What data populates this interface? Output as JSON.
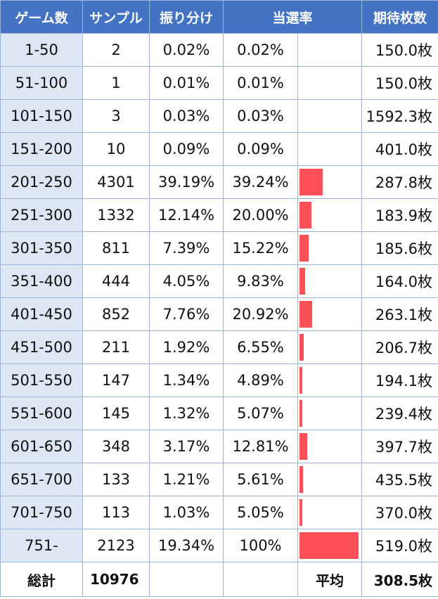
{
  "header": {
    "games": "ゲーム数",
    "samples": "サンプル",
    "distribution": "振り分け",
    "win_rate": "当選率",
    "expected": "期待枚数"
  },
  "chart_data": {
    "type": "table",
    "columns": [
      "ゲーム数",
      "サンプル",
      "振り分け",
      "当選率",
      "",
      "期待枚数"
    ],
    "bar_column": "当選率",
    "bar_color": "#ff5058",
    "rows": [
      {
        "range": "1-50",
        "samples": "2",
        "dist": "0.02%",
        "rate": "0.02%",
        "rate_value": 0.02,
        "ev": "150.0枚"
      },
      {
        "range": "51-100",
        "samples": "1",
        "dist": "0.01%",
        "rate": "0.01%",
        "rate_value": 0.01,
        "ev": "150.0枚"
      },
      {
        "range": "101-150",
        "samples": "3",
        "dist": "0.03%",
        "rate": "0.03%",
        "rate_value": 0.03,
        "ev": "1592.3枚"
      },
      {
        "range": "151-200",
        "samples": "10",
        "dist": "0.09%",
        "rate": "0.09%",
        "rate_value": 0.09,
        "ev": "401.0枚"
      },
      {
        "range": "201-250",
        "samples": "4301",
        "dist": "39.19%",
        "rate": "39.24%",
        "rate_value": 39.24,
        "ev": "287.8枚"
      },
      {
        "range": "251-300",
        "samples": "1332",
        "dist": "12.14%",
        "rate": "20.00%",
        "rate_value": 20.0,
        "ev": "183.9枚"
      },
      {
        "range": "301-350",
        "samples": "811",
        "dist": "7.39%",
        "rate": "15.22%",
        "rate_value": 15.22,
        "ev": "185.6枚"
      },
      {
        "range": "351-400",
        "samples": "444",
        "dist": "4.05%",
        "rate": "9.83%",
        "rate_value": 9.83,
        "ev": "164.0枚"
      },
      {
        "range": "401-450",
        "samples": "852",
        "dist": "7.76%",
        "rate": "20.92%",
        "rate_value": 20.92,
        "ev": "263.1枚"
      },
      {
        "range": "451-500",
        "samples": "211",
        "dist": "1.92%",
        "rate": "6.55%",
        "rate_value": 6.55,
        "ev": "206.7枚"
      },
      {
        "range": "501-550",
        "samples": "147",
        "dist": "1.34%",
        "rate": "4.89%",
        "rate_value": 4.89,
        "ev": "194.1枚"
      },
      {
        "range": "551-600",
        "samples": "145",
        "dist": "1.32%",
        "rate": "5.07%",
        "rate_value": 5.07,
        "ev": "239.4枚"
      },
      {
        "range": "601-650",
        "samples": "348",
        "dist": "3.17%",
        "rate": "12.81%",
        "rate_value": 12.81,
        "ev": "397.7枚"
      },
      {
        "range": "651-700",
        "samples": "133",
        "dist": "1.21%",
        "rate": "5.61%",
        "rate_value": 5.61,
        "ev": "435.5枚"
      },
      {
        "range": "701-750",
        "samples": "113",
        "dist": "1.03%",
        "rate": "5.05%",
        "rate_value": 5.05,
        "ev": "370.0枚"
      },
      {
        "range": "751-",
        "samples": "2123",
        "dist": "19.34%",
        "rate": "100%",
        "rate_value": 100,
        "ev": "519.0枚"
      }
    ],
    "footer": {
      "total_label": "総計",
      "total_samples": "10976",
      "avg_label": "平均",
      "avg_ev": "308.5枚"
    }
  }
}
